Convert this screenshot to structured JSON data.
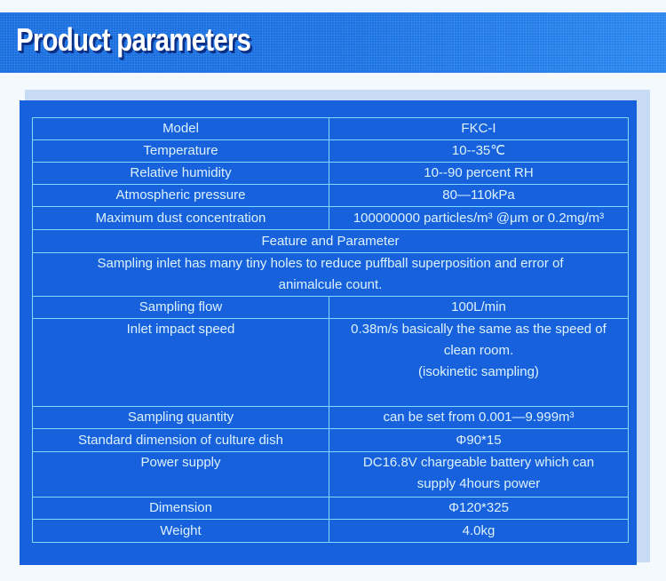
{
  "header": {
    "title": "Product parameters"
  },
  "colors": {
    "background": "#f4f9fd",
    "header": "#1a6fe0",
    "panel": "#1761dc",
    "grid": "#7fdcff",
    "text": "#dcf2ff"
  },
  "table": {
    "rows": [
      {
        "label": "Model",
        "value": "FKC-I"
      },
      {
        "label": "Temperature",
        "value": "10--35℃"
      },
      {
        "label": "Relative humidity",
        "value": "10--90 percent RH"
      },
      {
        "label": "Atmospheric pressure",
        "value": "80—110kPa"
      },
      {
        "label": "Maximum dust concentration",
        "value": "100000000 particles/m³ @μm or 0.2mg/m³"
      }
    ],
    "section_title": "Feature and Parameter",
    "feature_line1": "Sampling inlet has many tiny holes to reduce puffball superposition and error of",
    "feature_line2": "animalcule count.",
    "rows2": [
      {
        "label": "Sampling flow",
        "value": "100L/min"
      }
    ],
    "impact": {
      "label": "Inlet impact speed",
      "line1": "0.38m/s basically the same as the speed of",
      "line2": "clean room.",
      "line3": "(isokinetic sampling)"
    },
    "rows3": [
      {
        "label": "Sampling quantity",
        "value": "can be set from 0.001—9.999m³"
      },
      {
        "label": "Standard dimension of culture dish",
        "value": "Φ90*15"
      }
    ],
    "power": {
      "label": "Power supply",
      "line1": "DC16.8V chargeable battery which can",
      "line2": "supply 4hours power"
    },
    "rows4": [
      {
        "label": "Dimension",
        "value": "Φ120*325"
      },
      {
        "label": "Weight",
        "value": "4.0kg"
      }
    ]
  }
}
